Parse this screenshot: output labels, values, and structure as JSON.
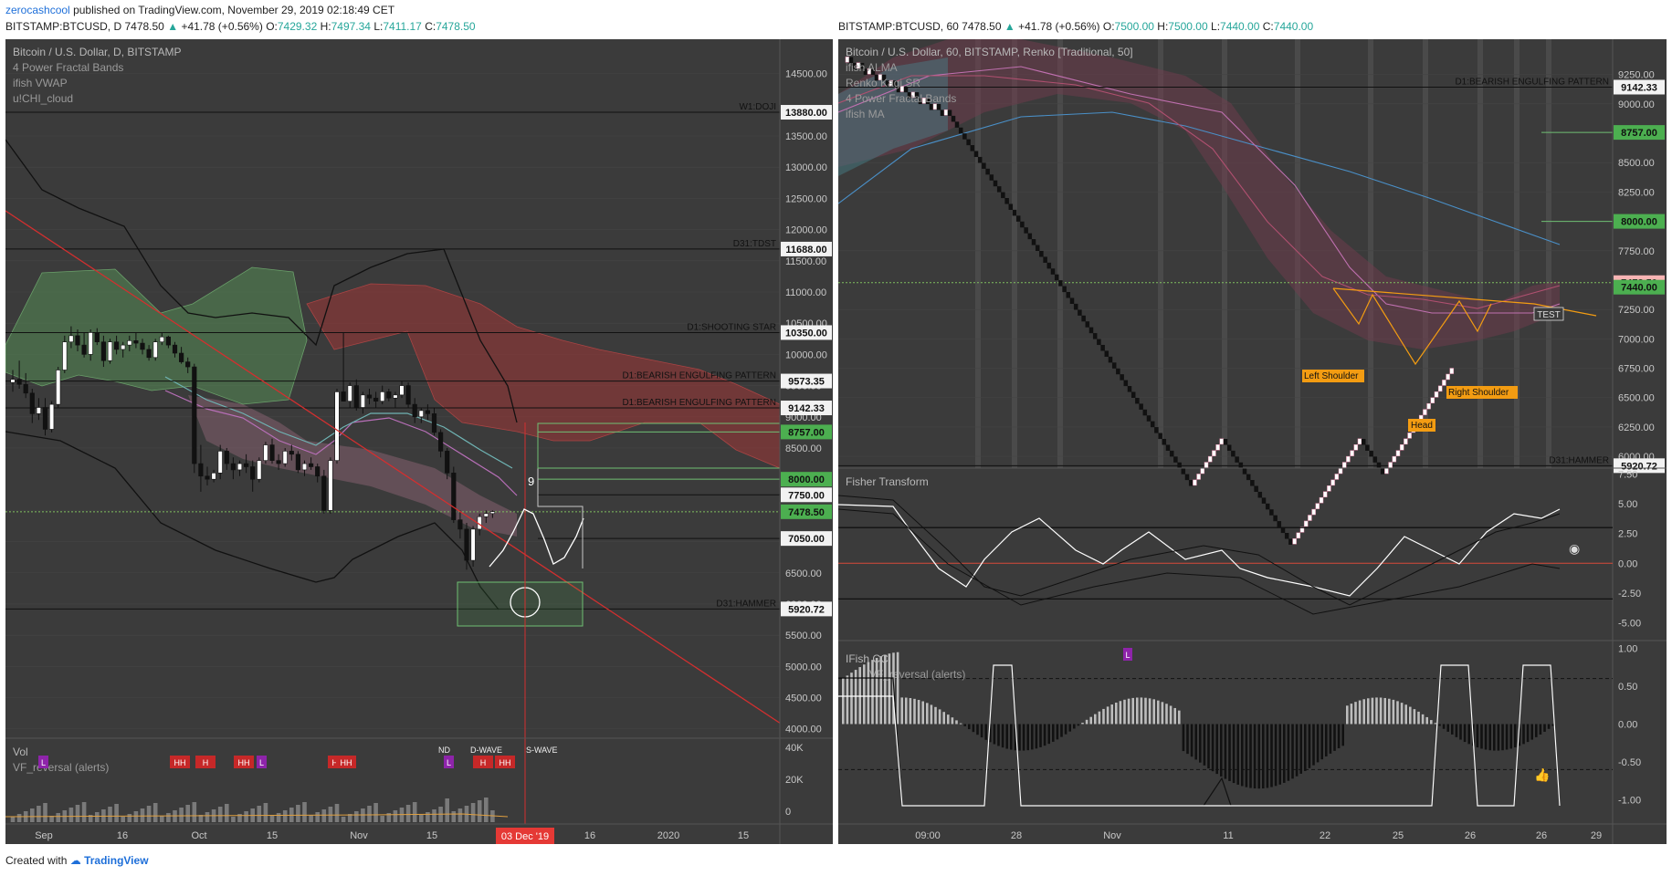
{
  "header": {
    "user": "zerocashcool",
    "published_text": "published on TradingView.com, November 29, 2019 02:18:49 CET"
  },
  "left_quote": {
    "symbol": "BITSTAMP:BTCUSD, D",
    "price": "7478.50",
    "change": "+41.78 (+0.56%)",
    "o_label": "O:",
    "o": "7429.32",
    "h_label": "H:",
    "h": "7497.34",
    "l_label": "L:",
    "l": "7411.17",
    "c_label": "C:",
    "c": "7478.50"
  },
  "right_quote": {
    "symbol": "BITSTAMP:BTCUSD, 60",
    "price": "7478.50",
    "change": "+41.78 (+0.56%)",
    "o_label": "O:",
    "o": "7500.00",
    "h_label": "H:",
    "h": "7500.00",
    "l_label": "L:",
    "l": "7440.00",
    "c_label": "C:",
    "c": "7440.00"
  },
  "footer": {
    "created_with": "Created with",
    "brand": "TradingView"
  },
  "colors": {
    "panel_bg": "#3b3b3b",
    "grid": "#4a4a4a",
    "up": "#ffffff",
    "down": "#000000",
    "green_badge": "#4caf50",
    "red_line": "#d32f2f",
    "cloud_green": "#4b7a4b",
    "cloud_red": "#8b3a3a",
    "orange": "#f39c12"
  },
  "chart_data": [
    {
      "type": "candlestick",
      "title": "Bitcoin / U.S. Dollar, D, BITSTAMP",
      "indicators": [
        "4 Power Fractal Bands",
        "ifish VWAP",
        "u!CHI_cloud"
      ],
      "y_ticks": [
        "14500.00",
        "13500.00",
        "13000.00",
        "12500.00",
        "12000.00",
        "11500.00",
        "11000.00",
        "10500.00",
        "10000.00",
        "9500.00",
        "9000.00",
        "8500.00",
        "7500.00",
        "7000.00",
        "6500.00",
        "6000.00",
        "5500.00",
        "5000.00",
        "4500.00",
        "4000.00"
      ],
      "ylim": [
        3850,
        15050
      ],
      "x_ticks": [
        "Sep",
        "16",
        "Oct",
        "15",
        "Nov",
        "15",
        "16",
        "2020",
        "15"
      ],
      "date_badge": "03 Dec '19",
      "levels": [
        {
          "value": 13880,
          "label": "W1:DOJI",
          "badge": "13880.00"
        },
        {
          "value": 11688,
          "label": "D31:TDST",
          "badge": "11688.00"
        },
        {
          "value": 10350,
          "label": "D1:SHOOTING STAR",
          "badge": "10350.00"
        },
        {
          "value": 9573.35,
          "label": "D1:BEARISH ENGULFING PATTERN",
          "badge": "9573.35"
        },
        {
          "value": 9142.33,
          "label": "D1:BEARISH ENGULFING PATTERN",
          "badge": "9142.33"
        },
        {
          "value": 5920.72,
          "label": "D31:HAMMER",
          "badge": "5920.72"
        }
      ],
      "target_badges": [
        "8757.00",
        "8000.00"
      ],
      "plain_badges": [
        "7750.00",
        "7050.00"
      ],
      "last_price_badge": "7478.50",
      "projection_count": "9",
      "ohlc": [
        [
          9550,
          9750,
          9400,
          9600
        ],
        [
          9600,
          9900,
          9450,
          9520
        ],
        [
          9520,
          9700,
          9300,
          9380
        ],
        [
          9380,
          9450,
          8900,
          9050
        ],
        [
          9050,
          9300,
          8950,
          9150
        ],
        [
          9150,
          9300,
          8700,
          8800
        ],
        [
          8800,
          9250,
          8750,
          9200
        ],
        [
          9200,
          9800,
          9150,
          9750
        ],
        [
          9750,
          10300,
          9700,
          10200
        ],
        [
          10200,
          10450,
          10100,
          10300
        ],
        [
          10300,
          10400,
          10050,
          10150
        ],
        [
          10150,
          10350,
          9950,
          10000
        ],
        [
          10000,
          10400,
          9900,
          10350
        ],
        [
          10350,
          10420,
          10150,
          10200
        ],
        [
          10200,
          10300,
          9800,
          9900
        ],
        [
          9900,
          10250,
          9850,
          10200
        ],
        [
          10200,
          10300,
          10000,
          10080
        ],
        [
          10080,
          10200,
          9950,
          10150
        ],
        [
          10150,
          10300,
          10050,
          10220
        ],
        [
          10220,
          10350,
          10100,
          10180
        ],
        [
          10180,
          10250,
          10000,
          10080
        ],
        [
          10080,
          10150,
          9900,
          9950
        ],
        [
          9950,
          10250,
          9900,
          10200
        ],
        [
          10200,
          10350,
          10150,
          10280
        ],
        [
          10280,
          10300,
          10100,
          10150
        ],
        [
          10150,
          10200,
          9950,
          10020
        ],
        [
          10020,
          10120,
          9850,
          9880
        ],
        [
          9880,
          9950,
          9700,
          9800
        ],
        [
          9800,
          9850,
          8100,
          8250
        ],
        [
          8250,
          8550,
          7800,
          8050
        ],
        [
          8050,
          8200,
          7900,
          8000
        ],
        [
          8000,
          8150,
          7950,
          8100
        ],
        [
          8100,
          8550,
          8000,
          8450
        ],
        [
          8450,
          8500,
          8150,
          8250
        ],
        [
          8250,
          8350,
          8000,
          8150
        ],
        [
          8150,
          8300,
          8050,
          8250
        ],
        [
          8250,
          8400,
          8100,
          8200
        ],
        [
          8200,
          8300,
          7800,
          8000
        ],
        [
          8000,
          8350,
          7950,
          8300
        ],
        [
          8300,
          8600,
          8250,
          8550
        ],
        [
          8550,
          8650,
          8250,
          8300
        ],
        [
          8300,
          8400,
          8150,
          8250
        ],
        [
          8250,
          8500,
          8200,
          8450
        ],
        [
          8450,
          8550,
          8300,
          8400
        ],
        [
          8400,
          8450,
          8100,
          8150
        ],
        [
          8150,
          8300,
          8050,
          8250
        ],
        [
          8250,
          8350,
          8150,
          8200
        ],
        [
          8200,
          8250,
          7950,
          8050
        ],
        [
          8050,
          8150,
          7450,
          7500
        ],
        [
          7500,
          8350,
          7450,
          8300
        ],
        [
          8300,
          9450,
          8250,
          9400
        ],
        [
          9400,
          10350,
          9300,
          9250
        ],
        [
          9250,
          9550,
          9150,
          9500
        ],
        [
          9500,
          9600,
          9100,
          9150
        ],
        [
          9150,
          9400,
          9050,
          9350
        ],
        [
          9350,
          9450,
          9200,
          9300
        ],
        [
          9300,
          9400,
          9150,
          9250
        ],
        [
          9250,
          9500,
          9200,
          9400
        ],
        [
          9400,
          9450,
          9250,
          9300
        ],
        [
          9300,
          9400,
          9150,
          9350
        ],
        [
          9350,
          9570,
          9300,
          9500
        ],
        [
          9500,
          9550,
          9150,
          9200
        ],
        [
          9200,
          9300,
          8900,
          9000
        ],
        [
          9000,
          9150,
          8900,
          9100
        ],
        [
          9100,
          9200,
          8950,
          9050
        ],
        [
          9050,
          9150,
          8700,
          8750
        ],
        [
          8750,
          8800,
          8350,
          8450
        ],
        [
          8450,
          8500,
          8000,
          8100
        ],
        [
          8100,
          8200,
          7300,
          7350
        ],
        [
          7350,
          7500,
          7050,
          7200
        ],
        [
          7200,
          7300,
          6550,
          6700
        ],
        [
          6700,
          7250,
          6600,
          7200
        ],
        [
          7200,
          7450,
          7100,
          7400
        ],
        [
          7400,
          7500,
          7300,
          7450
        ],
        [
          7450,
          7500,
          7380,
          7480
        ]
      ],
      "volume_labels": [
        "Vol",
        "VF_reversal (alerts)"
      ],
      "volume_ticks": [
        "40K",
        "20K",
        "0"
      ],
      "volume_markers": [
        "L",
        "HH",
        "H",
        "HH",
        "L",
        "HH",
        "HH",
        "L",
        "H",
        "HH"
      ],
      "volume_text_marks": [
        "ND",
        "D-WAVE",
        "S-WAVE"
      ]
    },
    {
      "type": "renko",
      "title": "Bitcoin / U.S. Dollar, 60, BITSTAMP, Renko [Traditional, 50]",
      "indicators": [
        "ifish ALMA",
        "Renko Kagi SR",
        "4 Power Fractal Bands",
        "ifish MA"
      ],
      "y_ticks": [
        "9250.00",
        "9000.00",
        "8500.00",
        "8250.00",
        "7750.00",
        "7250.00",
        "7000.00",
        "6750.00",
        "6500.00",
        "6250.00",
        "6000.00"
      ],
      "ylim": [
        5900,
        9550
      ],
      "x_ticks": [
        "09:00",
        "28",
        "Nov",
        "11",
        "22",
        "25",
        "26",
        "26",
        "29"
      ],
      "levels": [
        {
          "value": 9142.33,
          "label": "D1:BEARISH ENGULFING PATTERN",
          "badge": "9142.33"
        },
        {
          "value": 5920.72,
          "label": "D31:HAMMER",
          "badge": "5920.72"
        }
      ],
      "target_badges": [
        "8757.00",
        "8000.00"
      ],
      "last_price_badges": [
        "7478.50",
        "7440.00"
      ],
      "pattern_labels": [
        "Left Shoulder",
        "Head",
        "Right Shoulder"
      ],
      "test_label": "TEST",
      "fisher": {
        "title": "Fisher Transform",
        "y_ticks": [
          "7.50",
          "5.00",
          "2.50",
          "0.00",
          "-2.50",
          "-5.00"
        ],
        "ylim": [
          -6.5,
          8
        ]
      },
      "cci": {
        "title": "IFish CCI",
        "subtitle": "VF_reversal (alerts)",
        "y_ticks": [
          "1.00",
          "0.50",
          "0.00",
          "-0.50",
          "-1.00"
        ],
        "ylim": [
          -1.1,
          1.1
        ],
        "marker": "L"
      }
    }
  ]
}
